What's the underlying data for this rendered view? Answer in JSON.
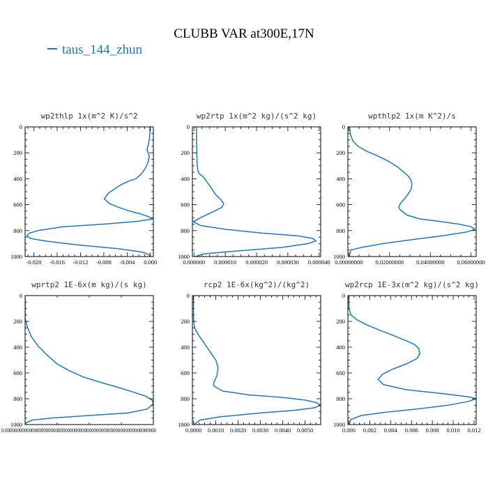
{
  "figure": {
    "title": "CLUBB VAR at300E,17N",
    "legend": [
      {
        "label": "taus_144_zhun",
        "color": "#1f77b4"
      }
    ]
  },
  "chart_data": [
    {
      "type": "line",
      "title": "wp2thlp  1x(m^2 K)/s^2",
      "xlim": [
        -0.0215,
        0.0005
      ],
      "ylim": [
        1000,
        0
      ],
      "xticks": [
        "-0.020",
        "-0.016",
        "-0.012",
        "-0.008",
        "-0.004",
        "0.000"
      ],
      "xtick_values": [
        -0.02,
        -0.016,
        -0.012,
        -0.008,
        -0.004,
        0.0
      ],
      "yticks": [
        "0",
        "200",
        "400",
        "600",
        "800",
        "1000"
      ],
      "ytick_values": [
        0,
        200,
        400,
        600,
        800,
        1000
      ],
      "series": [
        {
          "color": "#1f77b4",
          "x": [
            -0.0001,
            -0.0001,
            -0.0002,
            -0.0003,
            -0.0006,
            -0.0002,
            -0.0004,
            -0.0009,
            -0.0015,
            -0.0025,
            -0.0038,
            -0.0052,
            -0.0062,
            -0.0072,
            -0.0079,
            -0.0071,
            -0.0055,
            -0.0035,
            -0.0018,
            -0.0005,
            0.0004,
            -0.0025,
            -0.008,
            -0.015,
            -0.0193,
            -0.0208,
            -0.0212,
            -0.0206,
            -0.018,
            -0.0125,
            -0.0055,
            -0.0015,
            -0.0002,
            -0.0001
          ],
          "y": [
            0,
            50,
            100,
            125,
            175,
            225,
            270,
            320,
            360,
            400,
            420,
            450,
            480,
            510,
            555,
            590,
            620,
            650,
            670,
            690,
            710,
            730,
            750,
            770,
            800,
            820,
            840,
            860,
            880,
            910,
            940,
            965,
            985,
            1000
          ]
        }
      ]
    },
    {
      "type": "line",
      "title": "wp2rtp  1x(m^2 kg)/(s^2 kg)",
      "xlim": [
        -5e-07,
        4.05e-05
      ],
      "ylim": [
        1000,
        0
      ],
      "xticks": [
        "0.000000",
        "0.000010",
        "0.000020",
        "0.000030",
        "0.000040"
      ],
      "xtick_values": [
        0.0,
        1e-05,
        2e-05,
        3e-05,
        4e-05
      ],
      "yticks": [
        "0",
        "200",
        "400",
        "600",
        "800",
        "1000"
      ],
      "ytick_values": [
        0,
        200,
        400,
        600,
        800,
        1000
      ],
      "series": [
        {
          "color": "#1f77b4",
          "x": [
            8e-07,
            8e-07,
            9e-07,
            1e-06,
            1.2e-06,
            1.6e-06,
            2.8e-06,
            4e-06,
            5.5e-06,
            6.8e-06,
            8.5e-06,
            9.5e-06,
            9e-06,
            6.5e-06,
            3e-06,
            -2e-07,
            2e-06,
            1e-05,
            2.2e-05,
            3.3e-05,
            3.8e-05,
            3.9e-05,
            3.65e-05,
            2.8e-05,
            1.2e-05,
            3e-06,
            5e-07
          ],
          "y": [
            0,
            100,
            200,
            280,
            330,
            360,
            380,
            420,
            470,
            520,
            560,
            590,
            620,
            650,
            690,
            730,
            760,
            790,
            820,
            840,
            860,
            880,
            900,
            930,
            960,
            980,
            1000
          ]
        }
      ]
    },
    {
      "type": "line",
      "title": "wpthlp2  1x(m K^2)/s",
      "xlim": [
        -0.0005,
        0.0625
      ],
      "ylim": [
        1000,
        0
      ],
      "xticks": [
        "0.00000000",
        "0.02000000",
        "0.04000000",
        "0.06000000"
      ],
      "xtick_values": [
        0.0,
        0.02,
        0.04,
        0.06
      ],
      "yticks": [
        "0",
        "200",
        "400",
        "600",
        "800",
        "1000"
      ],
      "ytick_values": [
        0,
        200,
        400,
        600,
        800,
        1000
      ],
      "series": [
        {
          "color": "#1f77b4",
          "x": [
            0.0003,
            0.0008,
            0.002,
            0.0045,
            0.009,
            0.015,
            0.02,
            0.024,
            0.027,
            0.0292,
            0.0305,
            0.031,
            0.0306,
            0.029,
            0.027,
            0.0253,
            0.0245,
            0.0252,
            0.0285,
            0.035,
            0.045,
            0.054,
            0.06,
            0.062,
            0.058,
            0.046,
            0.031,
            0.017,
            0.006,
            0.001,
            0.0002
          ],
          "y": [
            0,
            60,
            110,
            150,
            190,
            230,
            270,
            310,
            350,
            380,
            410,
            440,
            480,
            520,
            560,
            590,
            620,
            640,
            680,
            710,
            730,
            750,
            770,
            790,
            810,
            840,
            870,
            900,
            930,
            950,
            1000
          ]
        }
      ]
    },
    {
      "type": "line",
      "title": "wprtp2  1E-6x(m kg)/(s kg)",
      "xlim": [
        0,
        1
      ],
      "ylim": [
        1000,
        0
      ],
      "xticks": [
        "0.000000000000000000000000000000000000000000000000000000000000000"
      ],
      "xtick_values": [
        0.0
      ],
      "yticks": [
        "0",
        "200",
        "400",
        "600",
        "800",
        "1000"
      ],
      "ytick_values": [
        0,
        200,
        400,
        600,
        800,
        1000
      ],
      "series": [
        {
          "color": "#1f77b4",
          "x": [
            0.0,
            0.0,
            0.02,
            0.05,
            0.1,
            0.17,
            0.25,
            0.34,
            0.45,
            0.58,
            0.72,
            0.85,
            0.94,
            0.99,
            1.0,
            0.95,
            0.8,
            0.5,
            0.2,
            0.06,
            0.01,
            0.0
          ],
          "y": [
            0,
            180,
            250,
            320,
            390,
            460,
            530,
            580,
            630,
            670,
            710,
            750,
            780,
            810,
            840,
            880,
            910,
            930,
            950,
            965,
            985,
            1000
          ]
        }
      ]
    },
    {
      "type": "line",
      "title": "rcp2  1E-6x(kg^2)/(kg^2)",
      "xlim": [
        -5e-05,
        0.0057
      ],
      "ylim": [
        1000,
        0
      ],
      "xticks": [
        "0.0000",
        "0.0010",
        "0.0020",
        "0.0030",
        "0.0040",
        "0.0050"
      ],
      "xtick_values": [
        0.0,
        0.001,
        0.002,
        0.003,
        0.004,
        0.005
      ],
      "yticks": [
        "0",
        "200",
        "400",
        "600",
        "800",
        "1000"
      ],
      "ytick_values": [
        0,
        200,
        400,
        600,
        800,
        1000
      ],
      "series": [
        {
          "color": "#1f77b4",
          "x": [
            0.0,
            0.0,
            5e-05,
            0.0002,
            0.0004,
            0.0006,
            0.0008,
            0.001,
            0.0011,
            0.00105,
            0.0009,
            0.0009,
            0.0013,
            0.0025,
            0.004,
            0.005,
            0.0055,
            0.0057,
            0.0054,
            0.0045,
            0.003,
            0.0012,
            0.0003,
            0.0
          ],
          "y": [
            0,
            190,
            250,
            300,
            350,
            400,
            450,
            500,
            560,
            620,
            680,
            700,
            740,
            770,
            790,
            810,
            830,
            850,
            870,
            890,
            910,
            940,
            965,
            1000
          ]
        }
      ]
    },
    {
      "type": "line",
      "title": "wp2rcp  1E-3x(m^2 kg)/(s^2 kg)",
      "xlim": [
        -0.0001,
        0.0122
      ],
      "ylim": [
        1000,
        0
      ],
      "xticks": [
        "0.000",
        "0.002",
        "0.004",
        "0.006",
        "0.008",
        "0.010",
        "0.012"
      ],
      "xtick_values": [
        0.0,
        0.002,
        0.004,
        0.006,
        0.008,
        0.01,
        0.012
      ],
      "yticks": [
        "0",
        "200",
        "400",
        "600",
        "800",
        "1000"
      ],
      "ytick_values": [
        0,
        200,
        400,
        600,
        800,
        1000
      ],
      "series": [
        {
          "color": "#1f77b4",
          "x": [
            0.0,
            0.0,
            0.0002,
            0.0008,
            0.0018,
            0.003,
            0.0043,
            0.0055,
            0.0063,
            0.0067,
            0.0068,
            0.0065,
            0.0055,
            0.0042,
            0.0032,
            0.0028,
            0.0033,
            0.0055,
            0.009,
            0.0115,
            0.0122,
            0.0115,
            0.0095,
            0.0065,
            0.0035,
            0.0012,
            0.0002,
            0.0
          ],
          "y": [
            0,
            100,
            150,
            190,
            230,
            270,
            310,
            350,
            380,
            410,
            450,
            490,
            530,
            570,
            610,
            650,
            690,
            730,
            760,
            785,
            800,
            820,
            850,
            880,
            905,
            930,
            960,
            1000
          ]
        }
      ]
    }
  ]
}
